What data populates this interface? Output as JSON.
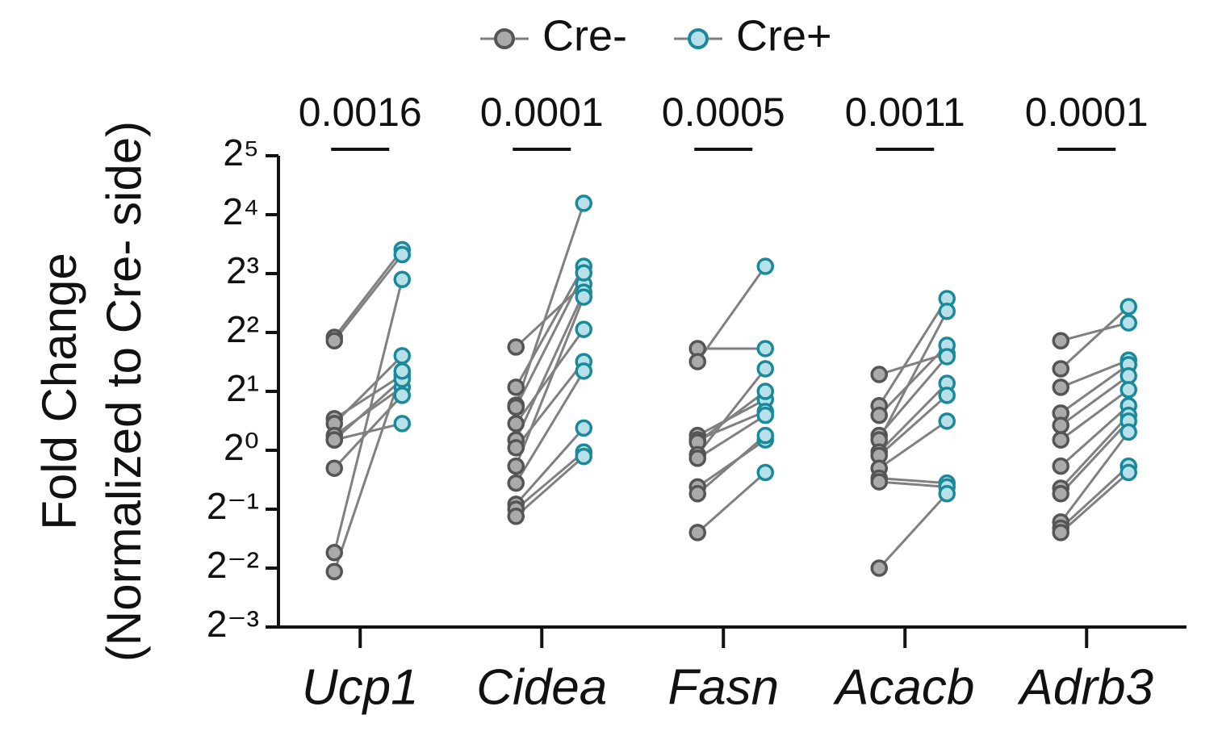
{
  "chart_data": {
    "type": "paired-dot",
    "y_label_lines": [
      "Fold Change",
      "(Normalized to Cre- side)"
    ],
    "log_scale": 2,
    "categories": [
      "Ucp1",
      "Cidea",
      "Fasn",
      "Acacb",
      "Adrb3"
    ],
    "annotations": [
      "0.0016",
      "0.0001",
      "0.0005",
      "0.0011",
      "0.0001"
    ],
    "ylim": [
      0.125,
      32
    ],
    "yticks": [
      {
        "value": 0.125,
        "label": "2⁻³"
      },
      {
        "value": 0.25,
        "label": "2⁻²"
      },
      {
        "value": 0.5,
        "label": "2⁻¹"
      },
      {
        "value": 1,
        "label": "2⁰"
      },
      {
        "value": 2,
        "label": "2¹"
      },
      {
        "value": 4,
        "label": "2²"
      },
      {
        "value": 8,
        "label": "2³"
      },
      {
        "value": 16,
        "label": "2⁴"
      },
      {
        "value": 32,
        "label": "2⁵"
      }
    ],
    "line_color": "#808080",
    "series": [
      {
        "name": "Cre-",
        "color": "#aaaaaa",
        "edge": "#555555",
        "values": [
          [
            3.78,
            3.63,
            1.45,
            1.37,
            1.19,
            1.13,
            1.13,
            0.81,
            0.3,
            0.24
          ],
          [
            3.37,
            2.1,
            1.7,
            1.66,
            1.37,
            1.13,
            1.03,
            0.83,
            0.68,
            0.53,
            0.5,
            0.46
          ],
          [
            3.31,
            2.84,
            1.19,
            1.13,
            1.1,
            0.95,
            0.91,
            0.65,
            0.6,
            0.38
          ],
          [
            2.44,
            1.69,
            1.51,
            1.19,
            1.13,
            0.98,
            0.94,
            0.81,
            0.72,
            0.69,
            0.25
          ],
          [
            3.63,
            2.61,
            2.1,
            1.55,
            1.34,
            1.13,
            0.83,
            0.64,
            0.6,
            0.43,
            0.4,
            0.38
          ]
        ]
      },
      {
        "name": "Cre+",
        "color": "#b8e0e8",
        "edge": "#1a8a9a",
        "values": [
          [
            10.6,
            10.0,
            2.42,
            3.04,
            2.1,
            2.31,
            1.37,
            1.91,
            7.47,
            2.54
          ],
          [
            7.07,
            8.71,
            18.3,
            8.07,
            4.15,
            6.42,
            2.84,
            6.07,
            2.54,
            1.3,
            0.98,
            0.93
          ],
          [
            3.31,
            8.71,
            1.82,
            1.58,
            2.0,
            2.61,
            1.51,
            1.13,
            1.19,
            0.77
          ],
          [
            3.12,
            5.96,
            3.44,
            3.01,
            5.13,
            2.2,
            1.91,
            1.41,
            0.68,
            0.65,
            0.6
          ],
          [
            4.48,
            5.42,
            2.89,
            2.74,
            2.4,
            2.04,
            1.69,
            1.51,
            1.41,
            1.24,
            0.83,
            0.77
          ]
        ]
      }
    ]
  }
}
